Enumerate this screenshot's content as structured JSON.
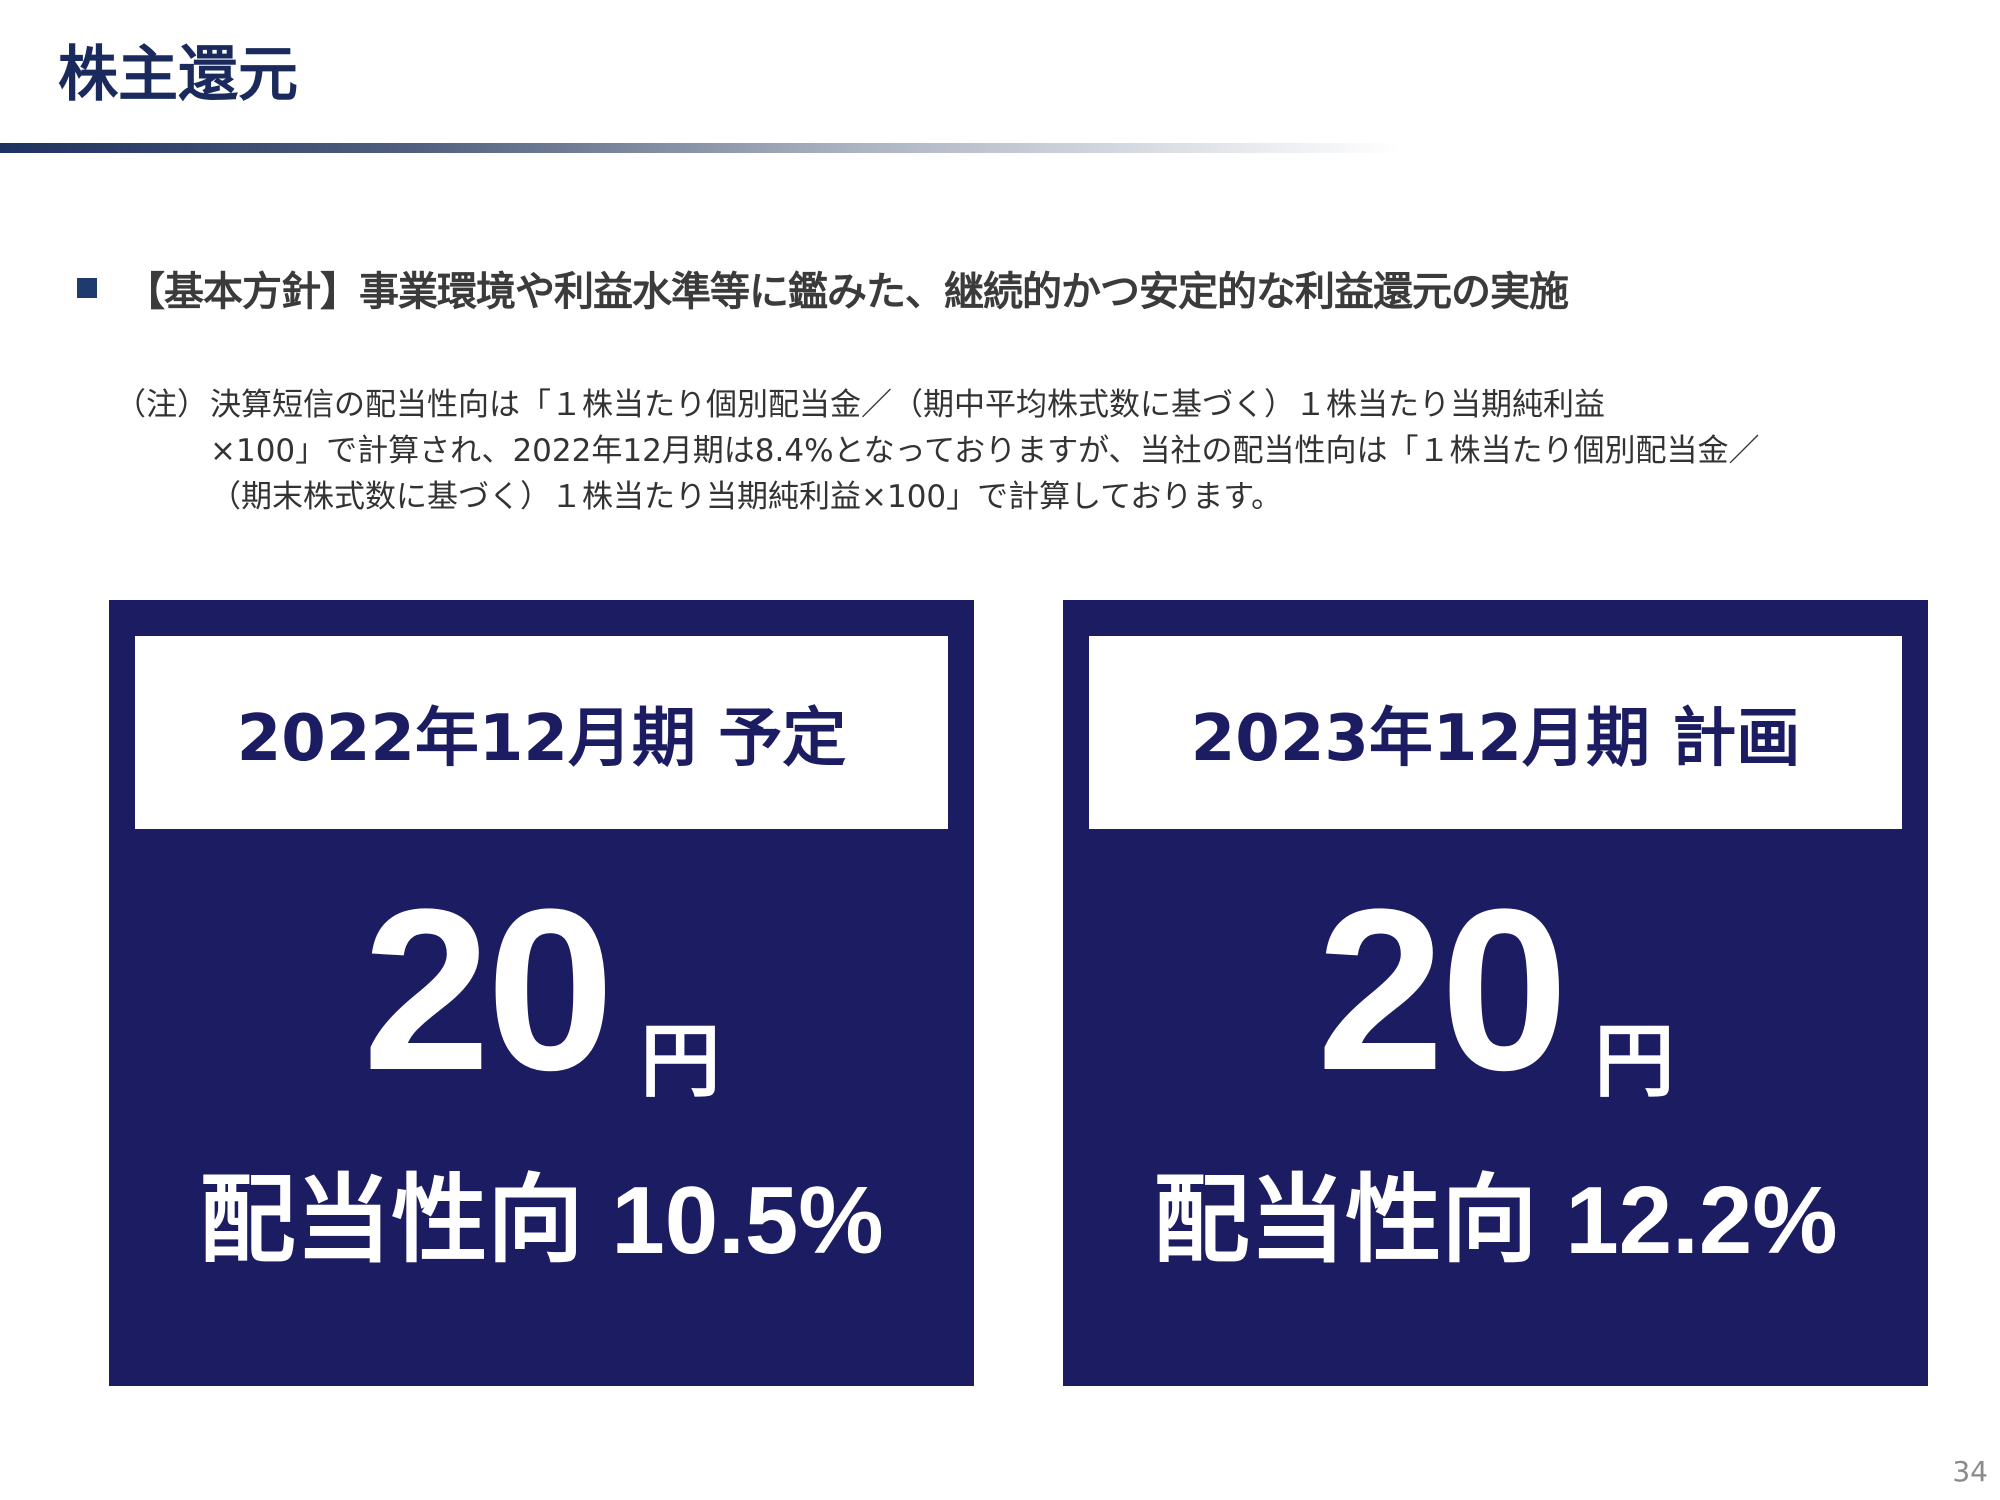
{
  "slide": {
    "title": "株主還元",
    "page_number": "34"
  },
  "policy": {
    "text": "【基本方針】事業環境や利益水準等に鑑みた、継続的かつ安定的な利益還元の実施"
  },
  "note": {
    "label": "（注）",
    "lines": [
      "決算短信の配当性向は「１株当たり個別配当金／（期中平均株式数に基づく）１株当たり当期純利益",
      "×100」で計算され、2022年12月期は8.4%となっておりますが、当社の配当性向は「１株当たり個別配当金／",
      "（期末株式数に基づく）１株当たり当期純利益×100」で計算しております。"
    ]
  },
  "cards": [
    {
      "period": "2022年12月期 予定",
      "amount": "20",
      "unit": "円",
      "ratio_label": "配当性向",
      "ratio_value": "10.5%"
    },
    {
      "period": "2023年12月期 計画",
      "amount": "20",
      "unit": "円",
      "ratio_label": "配当性向",
      "ratio_value": "12.2%"
    }
  ],
  "colors": {
    "navy": "#1c1c63",
    "title": "#1b2a5c",
    "bullet": "#1f3a6e",
    "text": "#3b3b3b"
  }
}
